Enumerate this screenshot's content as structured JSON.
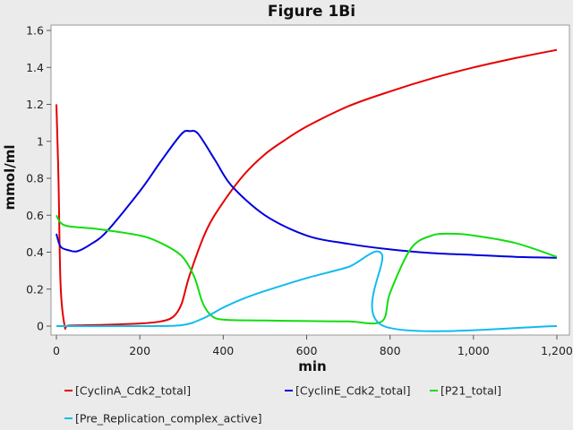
{
  "chart_data": {
    "type": "line",
    "title": "Figure 1Bi",
    "xlabel": "min",
    "ylabel": "mmol/ml",
    "xlim": [
      -10,
      1200
    ],
    "ylim": [
      -0.05,
      1.62
    ],
    "x_ticks": [
      0,
      200,
      400,
      600,
      800,
      1000,
      1200
    ],
    "x_tick_labels": [
      "0",
      "200",
      "400",
      "600",
      "800",
      "1,000",
      "1,200"
    ],
    "y_ticks": [
      0,
      0.2,
      0.4,
      0.6,
      0.8,
      1.0,
      1.2,
      1.4,
      1.6
    ],
    "y_tick_labels": [
      "0",
      "0.2",
      "0.4",
      "0.6",
      "0.8",
      "1",
      "1.2",
      "1.4",
      "1.6"
    ],
    "grid": false,
    "legend_position": "bottom",
    "series": [
      {
        "name": "[CyclinA_Cdk2_total]",
        "color": "#e60000",
        "x": [
          0,
          5,
          10,
          20,
          30,
          100,
          200,
          250,
          280,
          300,
          320,
          360,
          400,
          450,
          500,
          550,
          600,
          700,
          800,
          900,
          1000,
          1100,
          1200
        ],
        "y": [
          1.2,
          0.8,
          0.22,
          0.0,
          0.003,
          0.006,
          0.014,
          0.025,
          0.05,
          0.12,
          0.28,
          0.52,
          0.67,
          0.82,
          0.93,
          1.01,
          1.08,
          1.19,
          1.27,
          1.34,
          1.4,
          1.45,
          1.495
        ]
      },
      {
        "name": "[CyclinE_Cdk2_total]",
        "color": "#0000dd",
        "x": [
          0,
          10,
          30,
          50,
          80,
          120,
          200,
          250,
          300,
          320,
          340,
          380,
          420,
          500,
          600,
          700,
          800,
          900,
          1000,
          1100,
          1200
        ],
        "y": [
          0.5,
          0.43,
          0.41,
          0.405,
          0.44,
          0.51,
          0.73,
          0.89,
          1.04,
          1.055,
          1.04,
          0.9,
          0.76,
          0.6,
          0.49,
          0.445,
          0.415,
          0.395,
          0.385,
          0.375,
          0.37
        ]
      },
      {
        "name": "[P21_total]",
        "color": "#11dd11",
        "x": [
          0,
          10,
          30,
          100,
          200,
          250,
          300,
          330,
          350,
          370,
          400,
          500,
          600,
          700,
          780,
          800,
          850,
          900,
          950,
          1000,
          1100,
          1200
        ],
        "y": [
          0.6,
          0.56,
          0.54,
          0.525,
          0.49,
          0.45,
          0.38,
          0.27,
          0.13,
          0.06,
          0.035,
          0.03,
          0.027,
          0.025,
          0.025,
          0.18,
          0.42,
          0.49,
          0.5,
          0.49,
          0.45,
          0.375
        ]
      },
      {
        "name": "[Pre_Replication_complex_active]",
        "color": "#11bbee",
        "x": [
          0,
          200,
          300,
          350,
          400,
          450,
          500,
          600,
          700,
          780,
          785,
          1200
        ],
        "y": [
          0.0,
          0.0,
          0.005,
          0.04,
          0.1,
          0.15,
          0.19,
          0.26,
          0.32,
          0.39,
          0.0,
          0.0
        ]
      }
    ]
  }
}
